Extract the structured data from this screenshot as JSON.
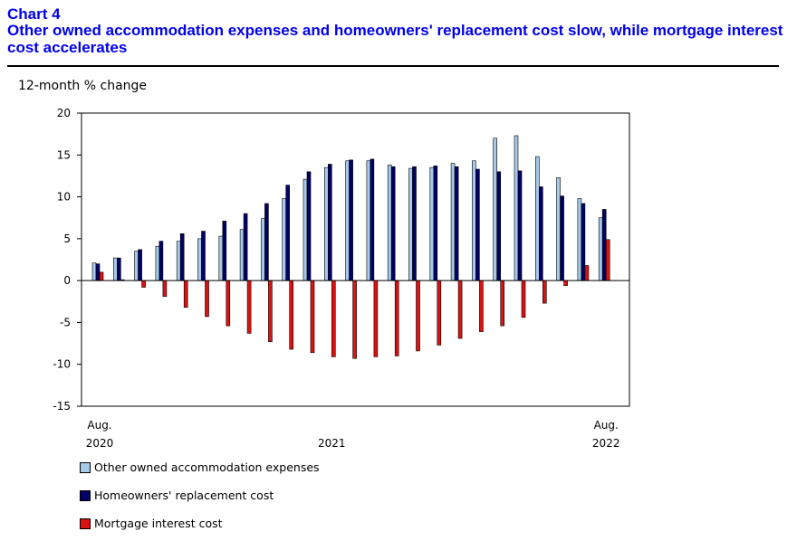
{
  "header": {
    "chart_number": "Chart 4",
    "title": "Other owned accommodation expenses and homeowners' replacement cost slow, while mortgage interest cost accelerates"
  },
  "colors": {
    "title": "#0000ee",
    "series_other": "#a6cbea",
    "series_replacement": "#000066",
    "series_mortgage": "#dd1111"
  },
  "chart_data": {
    "type": "bar",
    "ylabel": "12-month % change",
    "ylim": [
      -15,
      20
    ],
    "yticks": [
      20,
      15,
      10,
      5,
      0,
      -5,
      -10,
      -15
    ],
    "x_tick_labels": [
      {
        "index": 0,
        "lines": [
          "Aug.",
          "2020"
        ]
      },
      {
        "index": 11,
        "lines": [
          "2021"
        ]
      },
      {
        "index": 24,
        "lines": [
          "Aug.",
          "2022"
        ]
      }
    ],
    "categories": [
      "2020-08",
      "2020-09",
      "2020-10",
      "2020-11",
      "2020-12",
      "2021-01",
      "2021-02",
      "2021-03",
      "2021-04",
      "2021-05",
      "2021-06",
      "2021-07",
      "2021-08",
      "2021-09",
      "2021-10",
      "2021-11",
      "2021-12",
      "2022-01",
      "2022-02",
      "2022-03",
      "2022-04",
      "2022-05",
      "2022-06",
      "2022-07",
      "2022-08"
    ],
    "series": [
      {
        "name": "Other owned accommodation expenses",
        "color": "#a6cbea",
        "values": [
          2.1,
          2.7,
          3.5,
          4.1,
          4.7,
          5.0,
          5.3,
          6.1,
          7.4,
          9.8,
          12.1,
          13.5,
          14.3,
          14.3,
          13.8,
          13.4,
          13.5,
          14.0,
          14.3,
          17.0,
          17.3,
          14.8,
          12.3,
          9.8,
          7.5
        ]
      },
      {
        "name": "Homeowners' replacement cost",
        "color": "#000066",
        "values": [
          2.0,
          2.7,
          3.7,
          4.7,
          5.6,
          5.9,
          7.1,
          8.0,
          9.2,
          11.4,
          13.0,
          13.9,
          14.4,
          14.5,
          13.6,
          13.6,
          13.7,
          13.6,
          13.3,
          13.0,
          13.1,
          11.2,
          10.1,
          9.2,
          8.5
        ]
      },
      {
        "name": "Mortgage interest cost",
        "color": "#dd1111",
        "values": [
          1.0,
          0.1,
          -0.8,
          -1.9,
          -3.2,
          -4.3,
          -5.4,
          -6.3,
          -7.3,
          -8.2,
          -8.6,
          -9.1,
          -9.3,
          -9.1,
          -9.0,
          -8.4,
          -7.7,
          -6.9,
          -6.1,
          -5.4,
          -4.4,
          -2.7,
          -0.6,
          1.8,
          4.9
        ]
      }
    ],
    "grid": false,
    "legend": "bottom-left"
  }
}
